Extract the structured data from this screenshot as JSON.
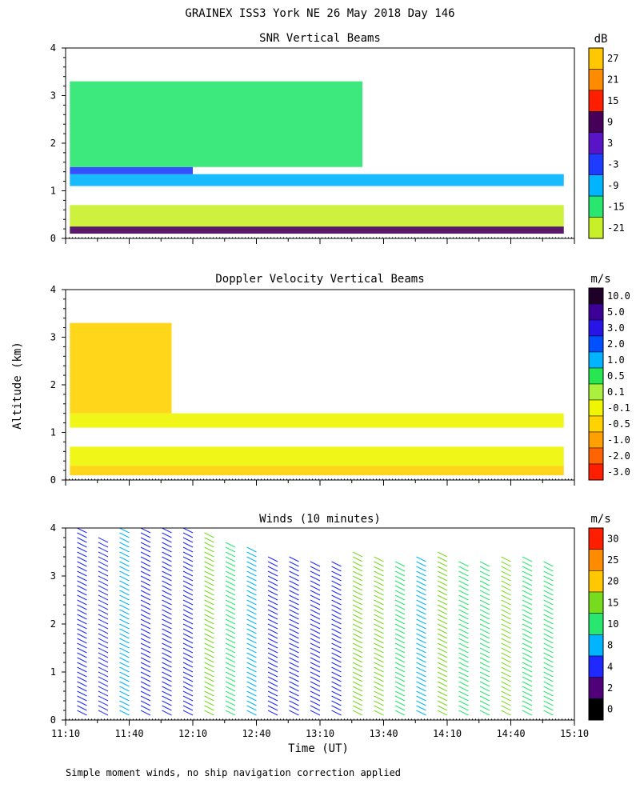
{
  "title": "GRAINEX ISS3 York NE  26 May 2018 Day 146",
  "footnote": "Simple moment winds, no ship navigation correction applied",
  "shared_axes": {
    "xlabel": "Time (UT)",
    "ylabel": "Altitude (km)",
    "x_ticks": [
      "11:10",
      "11:40",
      "12:10",
      "12:40",
      "13:10",
      "13:40",
      "14:10",
      "14:40",
      "15:10"
    ],
    "y_ticks": [
      "0",
      "1",
      "2",
      "3",
      "4"
    ]
  },
  "chart_data": [
    {
      "type": "heatmap",
      "title": "SNR Vertical Beams",
      "unit": "dB",
      "xlabel": "",
      "ylabel": "Altitude (km)",
      "xlim": [
        "11:10",
        "15:10"
      ],
      "ylim": [
        0,
        4
      ],
      "colorbar": {
        "labels": [
          "27",
          "21",
          "15",
          "9",
          "3",
          "-3",
          "-9",
          "-15",
          "-21"
        ],
        "colors": [
          "#ffc800",
          "#ff8c00",
          "#ff1e00",
          "#46005a",
          "#5a14c8",
          "#1e3cff",
          "#00b4ff",
          "#28e66e",
          "#c8f028"
        ]
      },
      "regions": [
        {
          "t0": "11:12",
          "t1": "15:05",
          "z0": 0.1,
          "z1": 0.25,
          "value": 9
        },
        {
          "t0": "11:12",
          "t1": "15:05",
          "z0": 0.25,
          "z1": 0.7,
          "value": -21
        },
        {
          "t0": "11:12",
          "t1": "15:05",
          "z0": 1.1,
          "z1": 1.35,
          "value": -9
        },
        {
          "t0": "11:12",
          "t1": "12:10",
          "z0": 1.35,
          "z1": 1.5,
          "value": -3
        },
        {
          "t0": "11:12",
          "t1": "13:30",
          "z0": 1.5,
          "z1": 3.3,
          "value": -15
        }
      ]
    },
    {
      "type": "heatmap",
      "title": "Doppler Velocity Vertical Beams",
      "unit": "m/s",
      "xlabel": "",
      "ylabel": "Altitude (km)",
      "xlim": [
        "11:10",
        "15:10"
      ],
      "ylim": [
        0,
        4
      ],
      "colorbar": {
        "labels": [
          "10.0",
          "5.0",
          "3.0",
          "2.0",
          "1.0",
          "0.5",
          "0.1",
          "-0.1",
          "-0.5",
          "-1.0",
          "-2.0",
          "-3.0"
        ],
        "colors": [
          "#1e0028",
          "#3c0096",
          "#2814e6",
          "#0050ff",
          "#00b4ff",
          "#28e650",
          "#aaf03c",
          "#f0f500",
          "#ffd200",
          "#ffa000",
          "#ff6400",
          "#ff1e00"
        ]
      },
      "regions": [
        {
          "t0": "11:12",
          "t1": "15:05",
          "z0": 0.1,
          "z1": 0.3,
          "value": -0.5
        },
        {
          "t0": "11:12",
          "t1": "15:05",
          "z0": 0.3,
          "z1": 0.7,
          "value": -0.1
        },
        {
          "t0": "11:12",
          "t1": "15:05",
          "z0": 1.1,
          "z1": 1.4,
          "value": -0.1
        },
        {
          "t0": "11:12",
          "t1": "12:00",
          "z0": 1.4,
          "z1": 3.3,
          "value": -0.5
        }
      ]
    },
    {
      "type": "scatter",
      "title": "Winds (10 minutes)",
      "unit": "m/s",
      "xlabel": "Time (UT)",
      "ylabel": "Altitude (km)",
      "xlim": [
        "11:10",
        "15:10"
      ],
      "ylim": [
        0,
        4
      ],
      "colorbar": {
        "labels": [
          "30",
          "25",
          "20",
          "15",
          "10",
          "8",
          "4",
          "2",
          "0"
        ],
        "colors": [
          "#ff1e00",
          "#ff8c00",
          "#ffc800",
          "#78dc1e",
          "#28e66e",
          "#00b4ff",
          "#1e28ff",
          "#500078",
          "#000000"
        ]
      },
      "wind_columns": [
        {
          "time": "11:20",
          "z_top": 4.0,
          "speed": 4
        },
        {
          "time": "11:30",
          "z_top": 3.8,
          "speed": 3
        },
        {
          "time": "11:40",
          "z_top": 4.0,
          "speed": 8
        },
        {
          "time": "11:50",
          "z_top": 4.0,
          "speed": 4
        },
        {
          "time": "12:00",
          "z_top": 4.1,
          "speed": 4
        },
        {
          "time": "12:10",
          "z_top": 4.1,
          "speed": 4
        },
        {
          "time": "12:20",
          "z_top": 3.9,
          "speed": 15
        },
        {
          "time": "12:30",
          "z_top": 3.7,
          "speed": 10
        },
        {
          "time": "12:40",
          "z_top": 3.6,
          "speed": 8
        },
        {
          "time": "12:50",
          "z_top": 3.4,
          "speed": 4
        },
        {
          "time": "13:00",
          "z_top": 3.4,
          "speed": 4
        },
        {
          "time": "13:10",
          "z_top": 3.3,
          "speed": 4
        },
        {
          "time": "13:20",
          "z_top": 3.3,
          "speed": 4
        },
        {
          "time": "13:30",
          "z_top": 3.5,
          "speed": 15
        },
        {
          "time": "13:40",
          "z_top": 3.4,
          "speed": 15
        },
        {
          "time": "13:50",
          "z_top": 3.3,
          "speed": 10
        },
        {
          "time": "14:00",
          "z_top": 3.4,
          "speed": 8
        },
        {
          "time": "14:10",
          "z_top": 3.5,
          "speed": 15
        },
        {
          "time": "14:20",
          "z_top": 3.3,
          "speed": 10
        },
        {
          "time": "14:30",
          "z_top": 3.3,
          "speed": 10
        },
        {
          "time": "14:40",
          "z_top": 3.4,
          "speed": 15
        },
        {
          "time": "14:50",
          "z_top": 3.4,
          "speed": 10
        },
        {
          "time": "15:00",
          "z_top": 3.3,
          "speed": 10
        }
      ]
    }
  ]
}
